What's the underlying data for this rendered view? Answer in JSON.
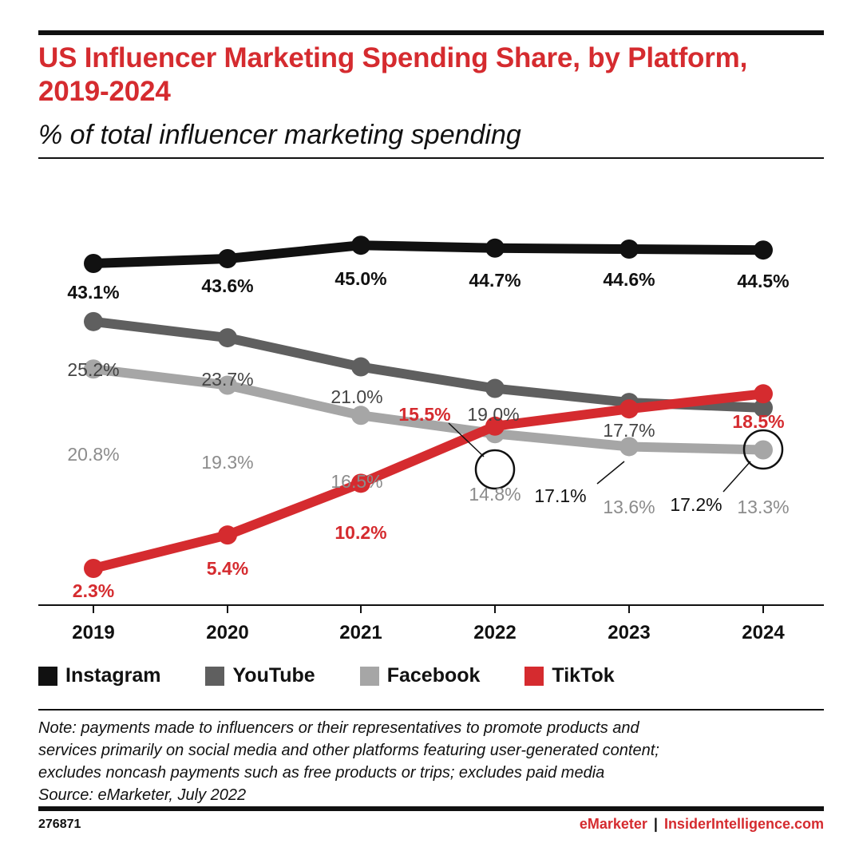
{
  "header": {
    "title": "US Influencer Marketing Spending Share, by Platform, 2019-2024",
    "subtitle": "% of total influencer marketing spending"
  },
  "chart_data": {
    "type": "line",
    "title": "US Influencer Marketing Spending Share, by Platform, 2019-2024",
    "subtitle": "% of total influencer marketing spending",
    "x": [
      "2019",
      "2020",
      "2021",
      "2022",
      "2023",
      "2024"
    ],
    "ylabel": "",
    "grid": false,
    "legend_position": "bottom",
    "series": [
      {
        "name": "Instagram",
        "color": "#111111",
        "values": [
          43.1,
          43.6,
          45.0,
          44.7,
          44.6,
          44.5
        ],
        "labels": [
          "43.1%",
          "43.6%",
          "45.0%",
          "44.7%",
          "44.6%",
          "44.5%"
        ]
      },
      {
        "name": "YouTube",
        "color": "#5f5f5f",
        "values": [
          25.2,
          23.7,
          21.0,
          19.0,
          17.7,
          17.2
        ],
        "labels": [
          "25.2%",
          "23.7%",
          "21.0%",
          "19.0%",
          "17.7%",
          "17.2%"
        ]
      },
      {
        "name": "Facebook",
        "color": "#a6a6a6",
        "values": [
          20.8,
          19.3,
          16.5,
          14.8,
          13.6,
          13.3
        ],
        "labels": [
          "20.8%",
          "19.3%",
          "16.5%",
          "14.8%",
          "13.6%",
          "13.3%"
        ]
      },
      {
        "name": "TikTok",
        "color": "#d52b2f",
        "values": [
          2.3,
          5.4,
          10.2,
          15.5,
          17.1,
          18.5
        ],
        "labels": [
          "2.3%",
          "5.4%",
          "10.2%",
          "15.5%",
          "17.1%",
          "18.5%"
        ]
      }
    ],
    "annotations": [
      "15.5%",
      "17.1%",
      "17.2%"
    ]
  },
  "note": {
    "lines": [
      "Note: payments made to influencers or their representatives to promote products and",
      "services primarily on social media and other platforms featuring user-generated content;",
      "excludes noncash payments such as free products or trips; excludes paid media",
      "Source: eMarketer, July 2022"
    ]
  },
  "footer": {
    "chart_id": "276871",
    "brand_left": "eMarketer",
    "separator": "|",
    "brand_right": "InsiderIntelligence.com"
  }
}
